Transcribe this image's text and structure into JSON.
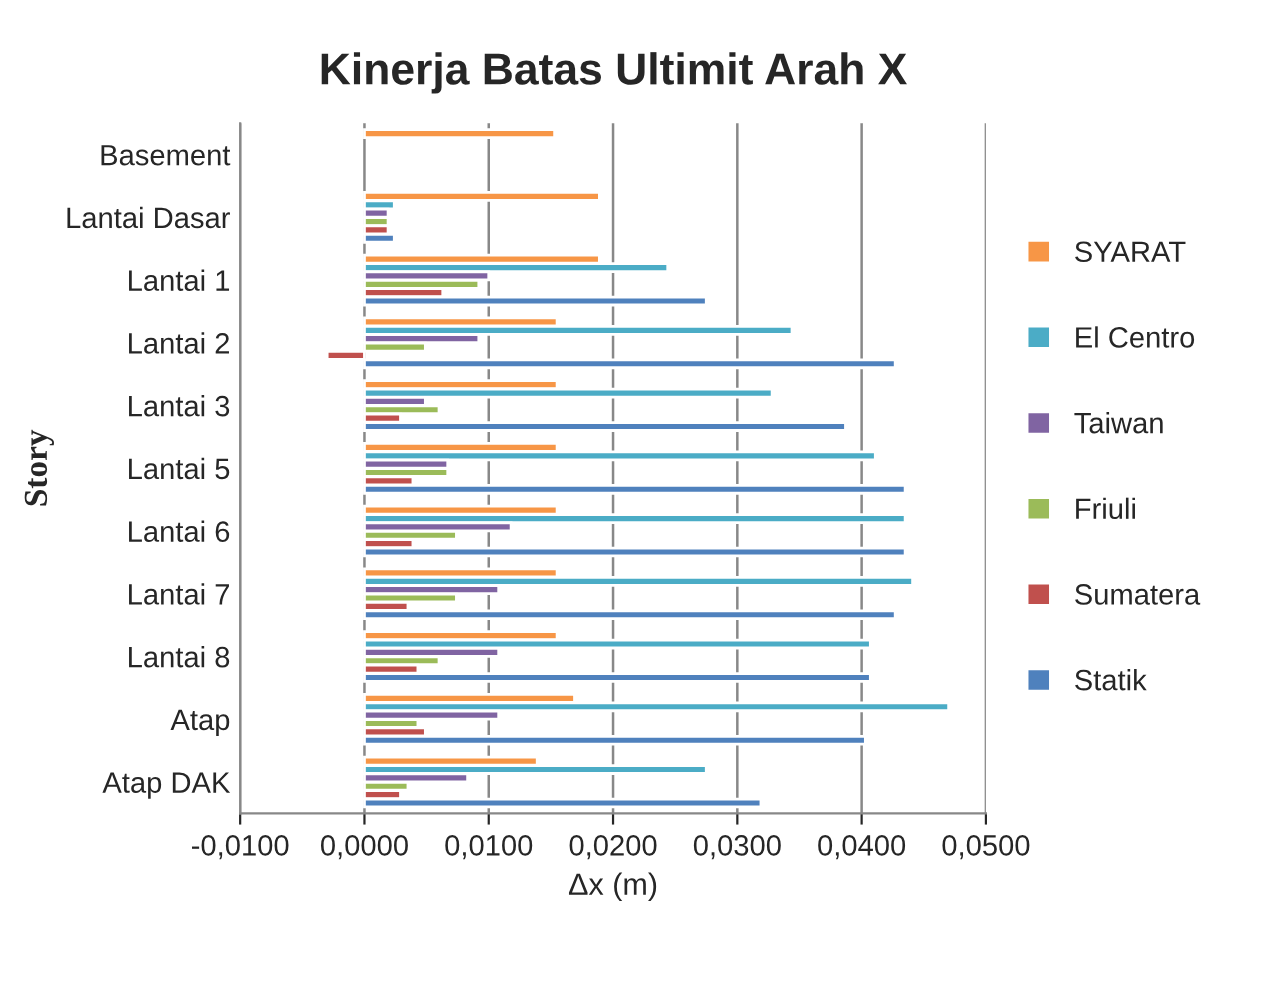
{
  "chart_data": {
    "type": "bar",
    "orientation": "horizontal",
    "title": "Kinerja Batas Ultimit Arah X",
    "xlabel": "Δx (m)",
    "ylabel": "Story",
    "categories": [
      "Basement",
      "Lantai Dasar",
      "Lantai 1",
      "Lantai 2",
      "Lantai 3",
      "Lantai 5",
      "Lantai 6",
      "Lantai 7",
      "Lantai 8",
      "Atap",
      "Atap DAK"
    ],
    "series": [
      {
        "name": "SYARAT",
        "color": "#f79646",
        "values": [
          0.0153,
          0.0189,
          0.0189,
          0.0155,
          0.0155,
          0.0155,
          0.0155,
          0.0155,
          0.0155,
          0.0169,
          0.0139
        ]
      },
      {
        "name": "El Centro",
        "color": "#4bacc6",
        "values": [
          null,
          0.0024,
          0.0244,
          0.0344,
          0.0328,
          0.0411,
          0.0435,
          0.0441,
          0.0407,
          0.047,
          0.0275
        ]
      },
      {
        "name": "Taiwan",
        "color": "#8064a2",
        "values": [
          null,
          0.0019,
          0.01,
          0.0092,
          0.0049,
          0.0067,
          0.0118,
          0.0108,
          0.0108,
          0.0108,
          0.0083
        ]
      },
      {
        "name": "Friuli",
        "color": "#9bbb59",
        "values": [
          null,
          0.0019,
          0.0092,
          0.0049,
          0.006,
          0.0067,
          0.0074,
          0.0074,
          0.006,
          0.0043,
          0.0035
        ]
      },
      {
        "name": "Sumatera",
        "color": "#c0504d",
        "values": [
          null,
          0.0019,
          0.0063,
          -0.003,
          0.0029,
          0.0039,
          0.0039,
          0.0035,
          0.0043,
          0.0049,
          0.0029
        ]
      },
      {
        "name": "Statik",
        "color": "#4f81bd",
        "values": [
          null,
          0.0024,
          0.0275,
          0.0427,
          0.0387,
          0.0435,
          0.0435,
          0.0427,
          0.0407,
          0.0403,
          0.0319
        ]
      }
    ],
    "xlim": [
      -0.01,
      0.05
    ],
    "xticks": [
      {
        "value": -0.01,
        "label": "-0,0100"
      },
      {
        "value": 0,
        "label": "0,0000"
      },
      {
        "value": 0.01,
        "label": "0,0100"
      },
      {
        "value": 0.02,
        "label": "0,0200"
      },
      {
        "value": 0.03,
        "label": "0,0300"
      },
      {
        "value": 0.04,
        "label": "0,0400"
      },
      {
        "value": 0.05,
        "label": "0,0500"
      }
    ],
    "grid": "x",
    "legend": "right"
  }
}
